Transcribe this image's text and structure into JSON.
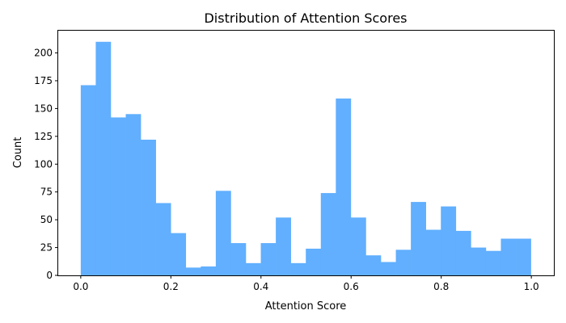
{
  "chart_data": {
    "type": "bar",
    "title": "Distribution of Attention Scores",
    "xlabel": "Attention Score",
    "ylabel": "Count",
    "xlim": [
      -0.05,
      1.05
    ],
    "ylim": [
      0,
      220
    ],
    "bin_start": 0.0,
    "bin_width": 0.0333,
    "values": [
      171,
      210,
      142,
      145,
      122,
      65,
      38,
      7,
      8,
      76,
      29,
      11,
      29,
      52,
      11,
      24,
      74,
      159,
      52,
      18,
      12,
      23,
      66,
      41,
      62,
      40,
      25,
      22,
      33,
      33
    ],
    "bar_color": "#61affe",
    "grid": false,
    "xticks": [
      "0.0",
      "0.2",
      "0.4",
      "0.6",
      "0.8",
      "1.0"
    ],
    "yticks": [
      "0",
      "25",
      "50",
      "75",
      "100",
      "125",
      "150",
      "175",
      "200"
    ]
  }
}
